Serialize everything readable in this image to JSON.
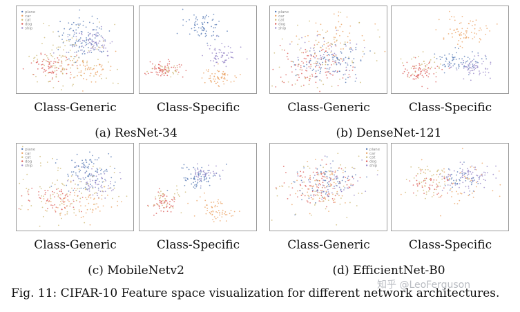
{
  "figure": {
    "caption": "Fig. 11: CIFAR-10 Feature space visualization for different network architectures.",
    "watermark": "知乎 @LeoFerguson",
    "colors": {
      "plane": "#4c72b0",
      "car": "#e99c5a",
      "cat": "#c9b36a",
      "dog": "#d9534f",
      "ship": "#8e7cc3"
    },
    "groups": [
      {
        "label": "(a) ResNet-34",
        "panels": [
          {
            "label": "Class-Generic",
            "legend": [
              "plane",
              "car",
              "cat",
              "dog",
              "ship"
            ]
          },
          {
            "label": "Class-Specific"
          }
        ]
      },
      {
        "label": "(b) DenseNet-121",
        "panels": [
          {
            "label": "Class-Generic",
            "legend": [
              "plane",
              "car",
              "cat",
              "dog",
              "ship"
            ]
          },
          {
            "label": "Class-Specific"
          }
        ]
      },
      {
        "label": "(c) MobileNetv2",
        "panels": [
          {
            "label": "Class-Generic",
            "legend": [
              "plane",
              "car",
              "cat",
              "dog",
              "ship"
            ]
          },
          {
            "label": "Class-Specific"
          }
        ]
      },
      {
        "label": "(d) EfficientNet-B0",
        "panels": [
          {
            "label": "Class-Generic",
            "legend": [
              "plane",
              "car",
              "cat",
              "dog",
              "ship"
            ]
          },
          {
            "label": "Class-Specific"
          }
        ]
      }
    ]
  }
}
